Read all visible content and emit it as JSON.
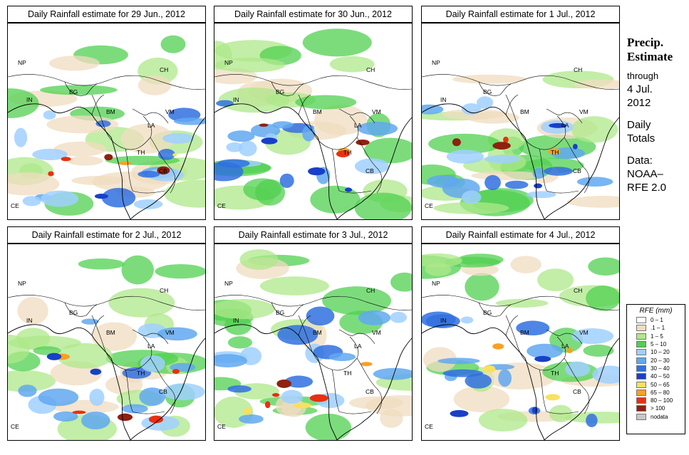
{
  "panels": [
    {
      "title": "Daily Rainfall estimate for  29 Jun., 2012",
      "seed": 11
    },
    {
      "title": "Daily Rainfall estimate for  30 Jun., 2012",
      "seed": 23
    },
    {
      "title": "Daily Rainfall estimate for  1 Jul., 2012",
      "seed": 37
    },
    {
      "title": "Daily Rainfall estimate for  2 Jul., 2012",
      "seed": 41
    },
    {
      "title": "Daily Rainfall estimate for  3 Jul., 2012",
      "seed": 53
    },
    {
      "title": "Daily Rainfall estimate for  4 Jul., 2012",
      "seed": 67
    }
  ],
  "region_labels": [
    "NP",
    "CH",
    "IN",
    "BG",
    "BM",
    "VM",
    "LA",
    "TH",
    "CB",
    "CE"
  ],
  "side": {
    "title_line1": "Precip.",
    "title_line2": "Estimate",
    "through": "through",
    "date_line1": "4 Jul.",
    "date_line2": "2012",
    "daily_line1": "Daily",
    "daily_line2": "Totals",
    "data_line1": "Data:",
    "data_line2": "NOAA–",
    "data_line3": "RFE 2.0"
  },
  "legend": {
    "title": "RFE (mm)",
    "items": [
      {
        "label": "0 – 1",
        "color": "#ffffff"
      },
      {
        "label": ".1 – 1",
        "color": "#f0dcc0"
      },
      {
        "label": "1 – 5",
        "color": "#aee88a"
      },
      {
        "label": "5 – 10",
        "color": "#50d050"
      },
      {
        "label": "10 – 20",
        "color": "#a0d0ff"
      },
      {
        "label": "20 – 30",
        "color": "#60a8f0"
      },
      {
        "label": "30 – 40",
        "color": "#3070e0"
      },
      {
        "label": "40 – 50",
        "color": "#1840c8"
      },
      {
        "label": "50 – 65",
        "color": "#f8e060"
      },
      {
        "label": "65 – 80",
        "color": "#f8a020"
      },
      {
        "label": "80 – 100",
        "color": "#e83010"
      },
      {
        "label": "> 100",
        "color": "#902010"
      },
      {
        "label": "nodata",
        "color": "#c8c8c8"
      }
    ]
  }
}
